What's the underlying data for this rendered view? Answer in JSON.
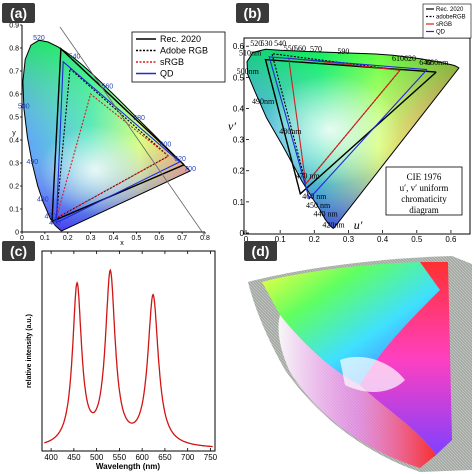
{
  "panels": {
    "a": {
      "label": "(a)",
      "x_axis_label": "x",
      "y_axis_label": "y",
      "x_ticks": [
        "0",
        "0.1",
        "0.2",
        "0.3",
        "0.4",
        "0.5",
        "0.6",
        "0.7",
        "0.8"
      ],
      "y_ticks": [
        "0",
        "0.1",
        "0.2",
        "0.3",
        "0.4",
        "0.5",
        "0.6",
        "0.7",
        "0.8",
        "0.9"
      ],
      "wavelength_labels": [
        {
          "text": "460",
          "x": 0.144,
          "y": 0.03
        },
        {
          "text": "470",
          "x": 0.124,
          "y": 0.058
        },
        {
          "text": "480",
          "x": 0.091,
          "y": 0.133
        },
        {
          "text": "490",
          "x": 0.045,
          "y": 0.295
        },
        {
          "text": "500",
          "x": 0.008,
          "y": 0.538
        },
        {
          "text": "520",
          "x": 0.074,
          "y": 0.834
        },
        {
          "text": "540",
          "x": 0.23,
          "y": 0.754
        },
        {
          "text": "560",
          "x": 0.373,
          "y": 0.624
        },
        {
          "text": "580",
          "x": 0.512,
          "y": 0.487
        },
        {
          "text": "600",
          "x": 0.627,
          "y": 0.372
        },
        {
          "text": "620",
          "x": 0.691,
          "y": 0.308
        },
        {
          "text": "700",
          "x": 0.735,
          "y": 0.265
        }
      ],
      "legend": [
        {
          "label": "Rec. 2020",
          "color": "#000000",
          "style": "solid"
        },
        {
          "label": "Adobe RGB",
          "color": "#000000",
          "style": "dotted"
        },
        {
          "label": "sRGB",
          "color": "#d61f1f",
          "style": "dotted"
        },
        {
          "label": "QD",
          "color": "#1f2bd6",
          "style": "solid"
        }
      ]
    },
    "b": {
      "label": "(b)",
      "x_axis_label": "u′",
      "y_axis_label": "v′",
      "x_ticks": [
        "0",
        "0.1",
        "0.2",
        "0.3",
        "0.4",
        "0.5",
        "0.6"
      ],
      "y_ticks": [
        "0",
        "0.1",
        "0.2",
        "0.3",
        "0.4",
        "0.5",
        "0.6"
      ],
      "wavelength_labels": [
        {
          "text": "420nm",
          "x": 0.256,
          "y": 0.017
        },
        {
          "text": "440 nm",
          "x": 0.233,
          "y": 0.053
        },
        {
          "text": "450 nm",
          "x": 0.211,
          "y": 0.081
        },
        {
          "text": "460 nm",
          "x": 0.2,
          "y": 0.11
        },
        {
          "text": "470 nm",
          "x": 0.18,
          "y": 0.175
        },
        {
          "text": "480nm",
          "x": 0.13,
          "y": 0.318
        },
        {
          "text": "490nm",
          "x": 0.05,
          "y": 0.415
        },
        {
          "text": "500nm",
          "x": 0.005,
          "y": 0.51
        },
        {
          "text": "510nm",
          "x": 0.012,
          "y": 0.57
        },
        {
          "text": "520",
          "x": 0.03,
          "y": 0.6
        },
        {
          "text": "530",
          "x": 0.06,
          "y": 0.6
        },
        {
          "text": "540",
          "x": 0.1,
          "y": 0.6
        },
        {
          "text": "550",
          "x": 0.128,
          "y": 0.585
        },
        {
          "text": "560",
          "x": 0.158,
          "y": 0.585
        },
        {
          "text": "570",
          "x": 0.205,
          "y": 0.583
        },
        {
          "text": "590",
          "x": 0.285,
          "y": 0.575
        },
        {
          "text": "610",
          "x": 0.445,
          "y": 0.552
        },
        {
          "text": "620",
          "x": 0.48,
          "y": 0.552
        },
        {
          "text": "640",
          "x": 0.525,
          "y": 0.54
        },
        {
          "text": "680nm",
          "x": 0.56,
          "y": 0.54
        }
      ],
      "legend": [
        {
          "label": "Rec. 2020",
          "color": "#000000",
          "style": "solid"
        },
        {
          "label": "adobeRGB",
          "color": "#000000",
          "style": "dotted"
        },
        {
          "label": "sRGB",
          "color": "#d61f1f",
          "style": "solid"
        },
        {
          "label": "QD",
          "color": "#1f2bd6",
          "style": "solid"
        }
      ],
      "note": [
        "CIE 1976",
        "u′, v′ uniform",
        "chromaticity",
        "diagram"
      ]
    },
    "c": {
      "label": "(c)",
      "x_axis_label": "Wavelength (nm)",
      "y_axis_label": "relative intensity (a.u.)",
      "x_ticks": [
        "400",
        "450",
        "500",
        "550",
        "600",
        "650",
        "700",
        "750"
      ]
    },
    "d": {
      "label": "(d)"
    }
  },
  "chart_data": [
    {
      "type": "line",
      "panel": "a",
      "title": "",
      "xlabel": "x",
      "ylabel": "y",
      "xlim": [
        0,
        0.8
      ],
      "ylim": [
        0,
        0.9
      ],
      "spectral_locus": {
        "x": [
          0.1741,
          0.1738,
          0.173,
          0.1714,
          0.1689,
          0.1644,
          0.1566,
          0.144,
          0.1241,
          0.0913,
          0.0687,
          0.0454,
          0.0235,
          0.0082,
          0.0039,
          0.0139,
          0.0389,
          0.0743,
          0.1142,
          0.1547,
          0.1929,
          0.2296,
          0.2658,
          0.3016,
          0.3373,
          0.3731,
          0.4087,
          0.4441,
          0.4788,
          0.5125,
          0.5448,
          0.5752,
          0.6029,
          0.627,
          0.6482,
          0.6658,
          0.6801,
          0.6915,
          0.7006,
          0.7079,
          0.714,
          0.719,
          0.723,
          0.726,
          0.7283,
          0.73,
          0.7347
        ],
        "y": [
          0.005,
          0.0049,
          0.0048,
          0.0051,
          0.0069,
          0.0109,
          0.0177,
          0.0297,
          0.0578,
          0.1327,
          0.2007,
          0.295,
          0.4127,
          0.5384,
          0.6548,
          0.7502,
          0.812,
          0.8338,
          0.8262,
          0.8059,
          0.7816,
          0.7543,
          0.7243,
          0.6923,
          0.6589,
          0.6245,
          0.5896,
          0.5547,
          0.5202,
          0.4866,
          0.4544,
          0.4242,
          0.3965,
          0.3725,
          0.3514,
          0.334,
          0.3197,
          0.3083,
          0.2993,
          0.292,
          0.2859,
          0.2809,
          0.277,
          0.274,
          0.2717,
          0.27,
          0.2653
        ]
      },
      "series": [
        {
          "name": "Rec. 2020",
          "x": [
            0.708,
            0.17,
            0.131,
            0.708
          ],
          "y": [
            0.292,
            0.797,
            0.046,
            0.292
          ]
        },
        {
          "name": "Adobe RGB",
          "x": [
            0.64,
            0.21,
            0.15,
            0.64
          ],
          "y": [
            0.33,
            0.71,
            0.06,
            0.33
          ]
        },
        {
          "name": "sRGB",
          "x": [
            0.64,
            0.3,
            0.15,
            0.64
          ],
          "y": [
            0.33,
            0.6,
            0.06,
            0.33
          ]
        },
        {
          "name": "QD",
          "x": [
            0.69,
            0.18,
            0.15,
            0.69
          ],
          "y": [
            0.305,
            0.74,
            0.04,
            0.305
          ]
        }
      ],
      "grid": false,
      "legend_position": "top-right"
    },
    {
      "type": "line",
      "panel": "b",
      "title": "",
      "xlabel": "u′",
      "ylabel": "v′",
      "xlim": [
        0,
        0.65
      ],
      "ylim": [
        0,
        0.62
      ],
      "spectral_locus": {
        "u": [
          0.2569,
          0.2542,
          0.246,
          0.232,
          0.219,
          0.198,
          0.164,
          0.11,
          0.06,
          0.024,
          0.005,
          0.003,
          0.02,
          0.057,
          0.1,
          0.14,
          0.18,
          0.23,
          0.28,
          0.33,
          0.38,
          0.43,
          0.475,
          0.515,
          0.545,
          0.57,
          0.588,
          0.6,
          0.61,
          0.618,
          0.6234
        ],
        "v": [
          0.015,
          0.016,
          0.023,
          0.044,
          0.07,
          0.106,
          0.166,
          0.275,
          0.37,
          0.46,
          0.51,
          0.55,
          0.58,
          0.59,
          0.587,
          0.585,
          0.583,
          0.581,
          0.579,
          0.577,
          0.575,
          0.571,
          0.565,
          0.559,
          0.553,
          0.548,
          0.544,
          0.541,
          0.538,
          0.534,
          0.53
        ]
      },
      "series": [
        {
          "name": "Rec. 2020",
          "x": [
            0.557,
            0.057,
            0.159,
            0.557
          ],
          "y": [
            0.517,
            0.557,
            0.126,
            0.517
          ]
        },
        {
          "name": "adobeRGB",
          "x": [
            0.451,
            0.076,
            0.175,
            0.451
          ],
          "y": [
            0.523,
            0.576,
            0.158,
            0.523
          ]
        },
        {
          "name": "sRGB",
          "x": [
            0.451,
            0.125,
            0.175,
            0.451
          ],
          "y": [
            0.523,
            0.562,
            0.158,
            0.523
          ]
        },
        {
          "name": "QD",
          "x": [
            0.53,
            0.068,
            0.185,
            0.53
          ],
          "y": [
            0.525,
            0.566,
            0.11,
            0.525
          ]
        }
      ],
      "grid": false,
      "legend_position": "top-right"
    },
    {
      "type": "line",
      "panel": "c",
      "title": "",
      "xlabel": "Wavelength (nm)",
      "ylabel": "relative intensity (a.u.)",
      "xlim": [
        380,
        760
      ],
      "ylim": [
        0,
        1.05
      ],
      "series": [
        {
          "name": "",
          "peaks": [
            {
              "center": 457,
              "height": 0.84,
              "fwhm": 24
            },
            {
              "center": 530,
              "height": 0.9,
              "fwhm": 26
            },
            {
              "center": 624,
              "height": 0.79,
              "fwhm": 28
            }
          ],
          "baseline": 0.01
        }
      ],
      "grid": false
    }
  ]
}
